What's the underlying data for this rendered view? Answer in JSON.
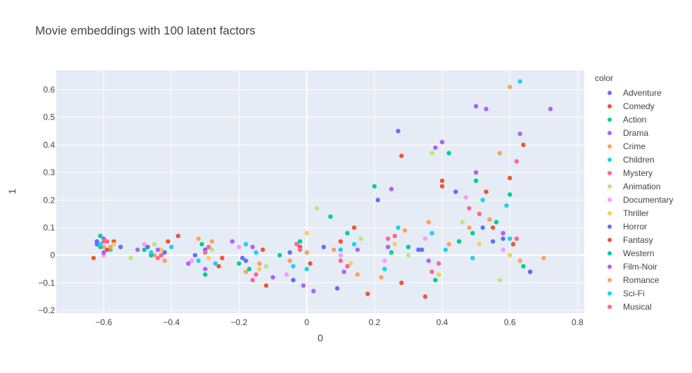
{
  "chart_data": {
    "type": "scatter",
    "title": "Movie embeddings with 100 latent factors",
    "xlabel": "0",
    "ylabel": "1",
    "xlim": [
      -0.74,
      0.82
    ],
    "ylim": [
      -0.21,
      0.67
    ],
    "x_ticks": [
      -0.6,
      -0.4,
      -0.2,
      0,
      0.2,
      0.4,
      0.6,
      0.8
    ],
    "y_ticks": [
      -0.2,
      -0.1,
      0,
      0.1,
      0.2,
      0.3,
      0.4,
      0.5,
      0.6
    ],
    "x_tick_labels": [
      "−0.6",
      "−0.4",
      "−0.2",
      "0",
      "0.2",
      "0.4",
      "0.6",
      "0.8"
    ],
    "y_tick_labels": [
      "−0.2",
      "−0.1",
      "0",
      "0.1",
      "0.2",
      "0.3",
      "0.4",
      "0.5",
      "0.6"
    ],
    "grid": true,
    "legend_title": "color",
    "legend_position": "right",
    "series": [
      {
        "name": "Adventure",
        "color": "#636efa",
        "points": [
          [
            -0.62,
            0.04
          ],
          [
            -0.55,
            0.03
          ],
          [
            -0.42,
            0.01
          ],
          [
            -0.3,
            0.02
          ],
          [
            -0.18,
            -0.02
          ],
          [
            -0.05,
            0.01
          ],
          [
            0.05,
            0.03
          ],
          [
            0.12,
            -0.04
          ],
          [
            0.27,
            0.45
          ],
          [
            0.33,
            0.02
          ],
          [
            0.45,
            0.05
          ],
          [
            0.52,
            0.1
          ],
          [
            0.58,
            0.06
          ],
          [
            0.66,
            -0.06
          ]
        ]
      },
      {
        "name": "Comedy",
        "color": "#ef553b",
        "points": [
          [
            -0.63,
            -0.01
          ],
          [
            -0.57,
            0.05
          ],
          [
            -0.38,
            0.07
          ],
          [
            -0.25,
            -0.01
          ],
          [
            -0.12,
            -0.11
          ],
          [
            -0.02,
            0.03
          ],
          [
            0.1,
            0.05
          ],
          [
            0.18,
            -0.14
          ],
          [
            0.28,
            0.36
          ],
          [
            0.35,
            -0.15
          ],
          [
            0.4,
            0.25
          ],
          [
            0.55,
            0.1
          ],
          [
            0.6,
            0.28
          ],
          [
            0.64,
            0.4
          ]
        ]
      },
      {
        "name": "Action",
        "color": "#00cc96",
        "points": [
          [
            -0.61,
            0.07
          ],
          [
            -0.48,
            0.02
          ],
          [
            -0.3,
            -0.07
          ],
          [
            -0.2,
            -0.03
          ],
          [
            -0.08,
            0.0
          ],
          [
            0.07,
            0.14
          ],
          [
            0.2,
            0.25
          ],
          [
            0.3,
            0.03
          ],
          [
            0.42,
            0.37
          ],
          [
            0.45,
            0.05
          ],
          [
            0.5,
            0.27
          ],
          [
            0.56,
            0.12
          ],
          [
            0.64,
            -0.04
          ]
        ]
      },
      {
        "name": "Drama",
        "color": "#ab63fa",
        "points": [
          [
            -0.6,
            0.06
          ],
          [
            -0.5,
            0.02
          ],
          [
            -0.35,
            -0.03
          ],
          [
            -0.22,
            0.05
          ],
          [
            -0.1,
            -0.08
          ],
          [
            0.02,
            -0.13
          ],
          [
            0.15,
            0.02
          ],
          [
            0.25,
            0.24
          ],
          [
            0.38,
            0.39
          ],
          [
            0.4,
            0.41
          ],
          [
            0.5,
            0.54
          ],
          [
            0.53,
            0.53
          ],
          [
            0.63,
            0.44
          ],
          [
            0.72,
            0.53
          ]
        ]
      },
      {
        "name": "Crime",
        "color": "#ffa15a",
        "points": [
          [
            -0.6,
            0.03
          ],
          [
            -0.45,
            0.0
          ],
          [
            -0.32,
            0.06
          ],
          [
            -0.18,
            -0.06
          ],
          [
            -0.05,
            -0.02
          ],
          [
            0.08,
            0.02
          ],
          [
            0.22,
            -0.08
          ],
          [
            0.36,
            0.12
          ],
          [
            0.48,
            0.1
          ],
          [
            0.57,
            0.37
          ],
          [
            0.6,
            0.61
          ],
          [
            0.7,
            -0.01
          ]
        ]
      },
      {
        "name": "Children",
        "color": "#19d3f3",
        "points": [
          [
            -0.58,
            0.02
          ],
          [
            -0.4,
            0.03
          ],
          [
            -0.27,
            -0.03
          ],
          [
            -0.15,
            0.01
          ],
          [
            0.0,
            -0.05
          ],
          [
            0.14,
            0.04
          ],
          [
            0.27,
            0.1
          ],
          [
            0.41,
            0.02
          ],
          [
            0.52,
            0.2
          ],
          [
            0.6,
            0.06
          ],
          [
            0.63,
            0.63
          ]
        ]
      },
      {
        "name": "Mystery",
        "color": "#ff6692",
        "points": [
          [
            -0.6,
            0.05
          ],
          [
            -0.44,
            -0.01
          ],
          [
            -0.3,
            0.01
          ],
          [
            -0.16,
            -0.09
          ],
          [
            -0.03,
            0.04
          ],
          [
            0.1,
            -0.02
          ],
          [
            0.24,
            0.06
          ],
          [
            0.37,
            -0.06
          ],
          [
            0.48,
            0.17
          ],
          [
            0.62,
            0.34
          ]
        ]
      },
      {
        "name": "Animation",
        "color": "#b6e880",
        "points": [
          [
            -0.52,
            -0.01
          ],
          [
            -0.45,
            0.04
          ],
          [
            -0.28,
            0.02
          ],
          [
            -0.12,
            -0.04
          ],
          [
            0.03,
            0.17
          ],
          [
            0.16,
            0.06
          ],
          [
            0.3,
            0.0
          ],
          [
            0.37,
            0.37
          ],
          [
            0.46,
            0.12
          ],
          [
            0.57,
            -0.09
          ]
        ]
      },
      {
        "name": "Documentary",
        "color": "#ff97ff",
        "points": [
          [
            -0.6,
            0.0
          ],
          [
            -0.48,
            0.04
          ],
          [
            -0.34,
            -0.02
          ],
          [
            -0.2,
            0.03
          ],
          [
            -0.06,
            -0.07
          ],
          [
            0.1,
            0.0
          ],
          [
            0.23,
            -0.02
          ],
          [
            0.35,
            0.06
          ],
          [
            0.47,
            0.21
          ],
          [
            0.58,
            0.02
          ]
        ]
      },
      {
        "name": "Thriller",
        "color": "#fecb52",
        "points": [
          [
            -0.57,
            0.04
          ],
          [
            -0.43,
            0.02
          ],
          [
            -0.29,
            -0.01
          ],
          [
            -0.14,
            -0.05
          ],
          [
            0.0,
            0.08
          ],
          [
            0.13,
            -0.03
          ],
          [
            0.26,
            0.04
          ],
          [
            0.39,
            -0.07
          ],
          [
            0.51,
            0.04
          ],
          [
            0.6,
            0.0
          ]
        ]
      },
      {
        "name": "Horror",
        "color": "#636efa",
        "points": [
          [
            -0.62,
            0.05
          ],
          [
            -0.47,
            0.03
          ],
          [
            -0.33,
            0.0
          ],
          [
            -0.19,
            -0.01
          ],
          [
            -0.04,
            -0.09
          ],
          [
            0.09,
            -0.12
          ],
          [
            0.21,
            0.2
          ],
          [
            0.34,
            0.02
          ],
          [
            0.44,
            0.23
          ],
          [
            0.55,
            0.05
          ],
          [
            0.66,
            -0.06
          ]
        ]
      },
      {
        "name": "Fantasy",
        "color": "#ef553b",
        "points": [
          [
            -0.59,
            0.02
          ],
          [
            -0.41,
            0.05
          ],
          [
            -0.26,
            -0.04
          ],
          [
            -0.13,
            0.02
          ],
          [
            0.01,
            -0.03
          ],
          [
            0.14,
            0.1
          ],
          [
            0.28,
            -0.1
          ],
          [
            0.4,
            0.27
          ],
          [
            0.53,
            0.23
          ],
          [
            0.61,
            0.04
          ]
        ]
      },
      {
        "name": "Western",
        "color": "#00cc96",
        "points": [
          [
            -0.61,
            0.03
          ],
          [
            -0.46,
            0.0
          ],
          [
            -0.31,
            0.04
          ],
          [
            -0.17,
            -0.05
          ],
          [
            -0.02,
            0.05
          ],
          [
            0.12,
            0.08
          ],
          [
            0.25,
            0.01
          ],
          [
            0.38,
            -0.09
          ],
          [
            0.49,
            0.08
          ],
          [
            0.6,
            0.22
          ]
        ]
      },
      {
        "name": "Film-Noir",
        "color": "#ab63fa",
        "points": [
          [
            -0.6,
            0.01
          ],
          [
            -0.44,
            0.02
          ],
          [
            -0.3,
            -0.05
          ],
          [
            -0.16,
            0.03
          ],
          [
            -0.01,
            -0.11
          ],
          [
            0.11,
            -0.06
          ],
          [
            0.24,
            0.03
          ],
          [
            0.36,
            -0.02
          ],
          [
            0.5,
            0.3
          ],
          [
            0.58,
            0.08
          ]
        ]
      },
      {
        "name": "Romance",
        "color": "#ffa15a",
        "points": [
          [
            -0.58,
            0.03
          ],
          [
            -0.42,
            -0.02
          ],
          [
            -0.28,
            0.05
          ],
          [
            -0.14,
            -0.03
          ],
          [
            0.0,
            0.01
          ],
          [
            0.15,
            -0.07
          ],
          [
            0.29,
            0.09
          ],
          [
            0.42,
            0.04
          ],
          [
            0.54,
            0.13
          ],
          [
            0.63,
            -0.02
          ]
        ]
      },
      {
        "name": "Sci-Fi",
        "color": "#19d3f3",
        "points": [
          [
            -0.61,
            0.04
          ],
          [
            -0.46,
            0.01
          ],
          [
            -0.32,
            -0.02
          ],
          [
            -0.18,
            0.04
          ],
          [
            -0.04,
            -0.04
          ],
          [
            0.1,
            0.02
          ],
          [
            0.23,
            -0.05
          ],
          [
            0.37,
            0.08
          ],
          [
            0.49,
            -0.01
          ],
          [
            0.59,
            0.18
          ]
        ]
      },
      {
        "name": "Musical",
        "color": "#ff6692",
        "points": [
          [
            -0.59,
            0.05
          ],
          [
            -0.43,
            0.0
          ],
          [
            -0.29,
            0.03
          ],
          [
            -0.15,
            -0.07
          ],
          [
            -0.02,
            0.02
          ],
          [
            0.12,
            -0.04
          ],
          [
            0.26,
            0.07
          ],
          [
            0.39,
            -0.03
          ],
          [
            0.51,
            0.15
          ],
          [
            0.62,
            0.06
          ]
        ]
      }
    ]
  }
}
